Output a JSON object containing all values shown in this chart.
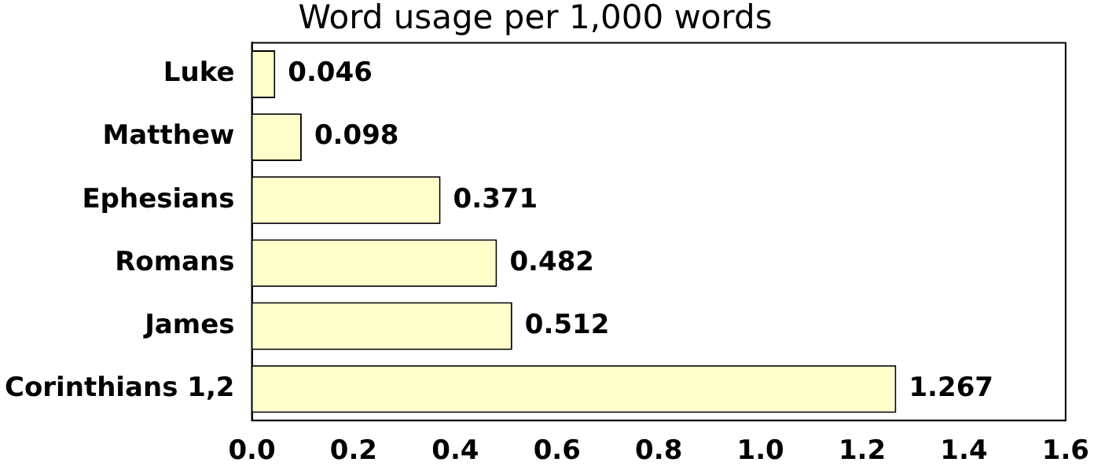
{
  "chart_data": {
    "type": "bar",
    "orientation": "horizontal",
    "title": "Word usage per 1,000 words",
    "categories": [
      "Luke",
      "Matthew",
      "Ephesians",
      "Romans",
      "James",
      "Corinthians 1,2"
    ],
    "values": [
      0.046,
      0.098,
      0.371,
      0.482,
      0.512,
      1.267
    ],
    "color": "#ffffcc",
    "xlim": [
      0,
      1.6
    ],
    "xticks": [
      {
        "value": 0,
        "label": "0.0"
      },
      0.2,
      0.4,
      0.6,
      0.8,
      {
        "value": 1,
        "label": "1.0"
      },
      1.2,
      1.4,
      1.6
    ],
    "data_labels": true,
    "grid": false,
    "legend": false
  }
}
